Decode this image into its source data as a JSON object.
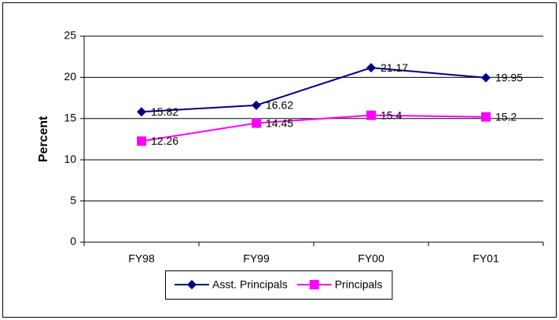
{
  "chart_data": {
    "type": "line",
    "y_label": "Percent",
    "categories": [
      "FY98",
      "FY99",
      "FY00",
      "FY01"
    ],
    "series": [
      {
        "name": "Asst. Principals",
        "color": "#000080",
        "marker": "diamond",
        "values": [
          15.82,
          16.62,
          21.17,
          19.95
        ]
      },
      {
        "name": "Principals",
        "color": "#ff00ff",
        "marker": "square",
        "values": [
          12.26,
          14.45,
          15.4,
          15.2
        ]
      }
    ],
    "ylim": [
      0,
      25
    ],
    "yticks": [
      0,
      5,
      10,
      15,
      20,
      25
    ],
    "grid": true,
    "legend": "bottom"
  }
}
